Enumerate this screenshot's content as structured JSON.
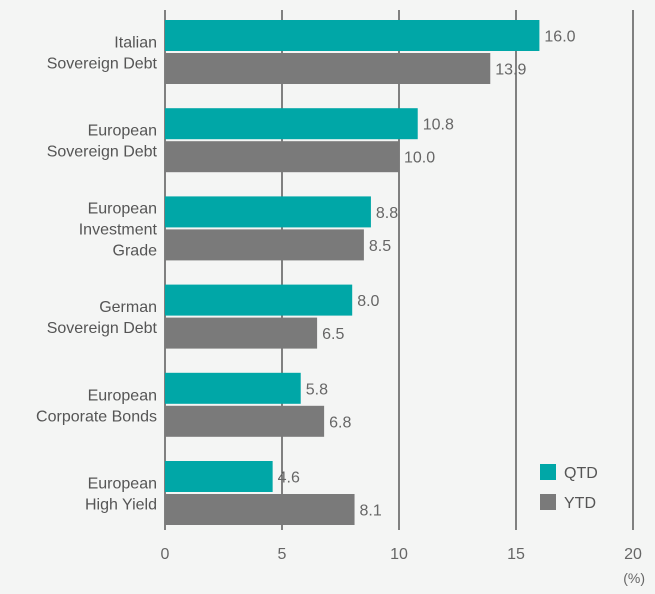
{
  "colors": {
    "background": "#f4f5f4",
    "qtd": "#00a7a7",
    "ytd": "#7a7a7a",
    "grid": "#333333",
    "text": "#555555",
    "value_text": "#666666",
    "axis_text": "#666666"
  },
  "chart_data": {
    "type": "bar",
    "orientation": "horizontal",
    "categories": [
      [
        "Italian",
        "Sovereign Debt"
      ],
      [
        "European",
        "Sovereign Debt"
      ],
      [
        "European",
        "Investment",
        "Grade"
      ],
      [
        "German",
        "Sovereign Debt"
      ],
      [
        "European",
        "Corporate Bonds"
      ],
      [
        "European",
        "High Yield"
      ]
    ],
    "series": [
      {
        "name": "QTD",
        "values": [
          16.0,
          10.8,
          8.8,
          8.0,
          5.8,
          4.6
        ],
        "labels": [
          "16.0",
          "10.8",
          "8.8",
          "8.0",
          "5.8",
          "4.6"
        ]
      },
      {
        "name": "YTD",
        "values": [
          13.9,
          10.0,
          8.5,
          6.5,
          6.8,
          8.1
        ],
        "labels": [
          "13.9",
          "10.0",
          "8.5",
          "6.5",
          "6.8",
          "8.1"
        ]
      }
    ],
    "xlim": [
      0,
      20
    ],
    "xticks": [
      0,
      5,
      10,
      15,
      20
    ],
    "xtick_labels": [
      "0",
      "5",
      "10",
      "15",
      "20"
    ],
    "xunit": "(%)",
    "grid": "vertical",
    "legend_position": "bottom-right"
  }
}
